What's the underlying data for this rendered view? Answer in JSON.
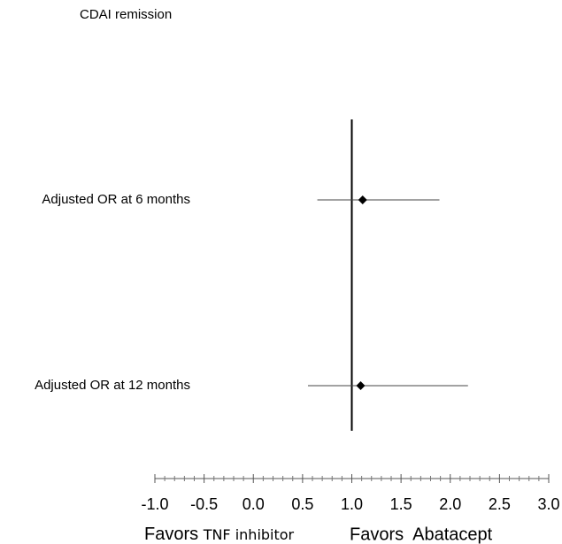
{
  "chart_data": {
    "type": "forest",
    "title": "CDAI remission",
    "categories": [
      "Adjusted OR at 6 months",
      "Adjusted OR at 12 months"
    ],
    "values": [
      1.11,
      1.09
    ],
    "ci_low": [
      0.65,
      0.555
    ],
    "ci_high": [
      1.89,
      2.18
    ],
    "reference": 1,
    "xlim": [
      -1,
      3
    ],
    "xticks": [
      {
        "value": -1,
        "label": "-1.0"
      },
      {
        "value": -0.5,
        "label": "-0.5"
      },
      {
        "value": 0,
        "label": "0.0"
      },
      {
        "value": 0.5,
        "label": "0.5"
      },
      {
        "value": 1,
        "label": "1.0"
      },
      {
        "value": 1.5,
        "label": "1.5"
      },
      {
        "value": 2,
        "label": "2.0"
      },
      {
        "value": 2.5,
        "label": "2.5"
      },
      {
        "value": 3,
        "label": "3.0"
      }
    ],
    "left_note": {
      "prefix": "Favors",
      "group": "TNF inhibitor"
    },
    "right_note": "Favors  Abatacept"
  }
}
